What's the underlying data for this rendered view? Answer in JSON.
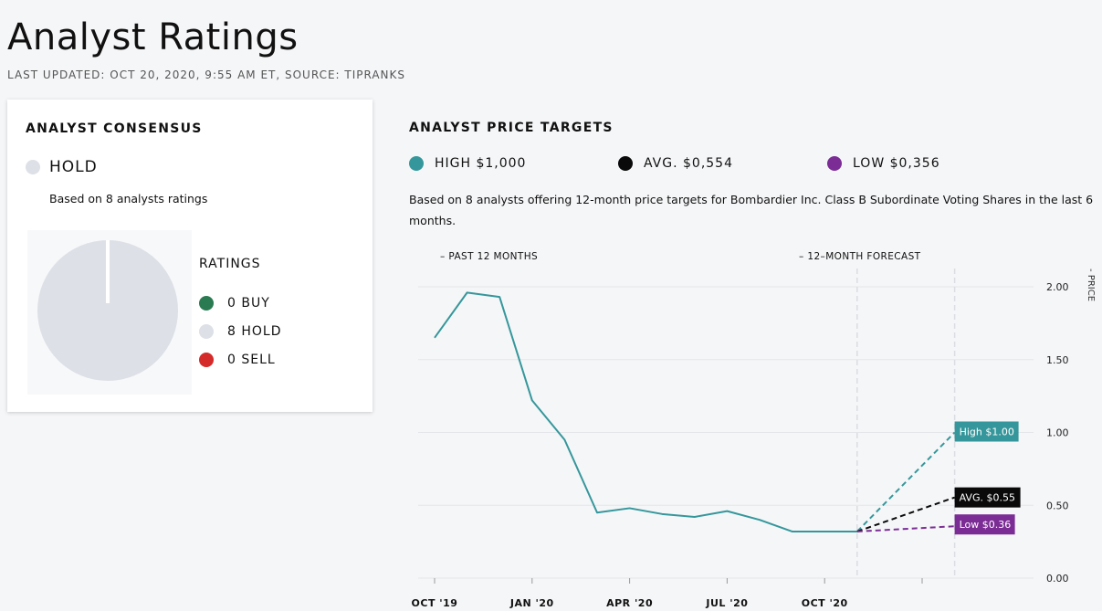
{
  "header": {
    "title": "Analyst Ratings",
    "last_updated": "LAST UPDATED: OCT 20, 2020, 9:55 AM ET, SOURCE: TIPRANKS"
  },
  "consensus": {
    "heading": "ANALYST CONSENSUS",
    "rating": "HOLD",
    "based_on": "Based on 8 analysts ratings",
    "ratings_title": "RATINGS",
    "ratings": [
      {
        "label": "0 BUY",
        "color": "#2a7a52"
      },
      {
        "label": "8 HOLD",
        "color": "#dde0e6"
      },
      {
        "label": "0 SELL",
        "color": "#d42a2a"
      }
    ],
    "pie_color": "#dde0e6"
  },
  "targets": {
    "heading": "ANALYST PRICE TARGETS",
    "legend": [
      {
        "label": "HIGH $1,000",
        "color": "#35979b"
      },
      {
        "label": "AVG. $0,554",
        "color": "#0a0a0a"
      },
      {
        "label": "LOW $0,356",
        "color": "#7b2d95"
      }
    ],
    "description": "Based on 8 analysts offering 12-month price targets for Bombardier Inc. Class B Subordinate Voting Shares in the last 6 months."
  },
  "chart_data": {
    "type": "line",
    "section_labels": {
      "past": "– PAST 12 MONTHS",
      "forecast": "– 12–MONTH FORECAST"
    },
    "ylabel": "- PRICE",
    "ylim": [
      0,
      2.0
    ],
    "yticks": [
      {
        "value": 0,
        "label": "0.00"
      },
      {
        "value": 0.5,
        "label": "0.50"
      },
      {
        "value": 1.0,
        "label": "1.00"
      },
      {
        "value": 1.5,
        "label": "1.50"
      },
      {
        "value": 2.0,
        "label": "2.00"
      }
    ],
    "xticks": [
      {
        "month": 0,
        "label": "OCT '19"
      },
      {
        "month": 3,
        "label": "JAN '20"
      },
      {
        "month": 6,
        "label": "APR '20"
      },
      {
        "month": 9,
        "label": "JUL '20"
      },
      {
        "month": 12,
        "label": "OCT '20"
      }
    ],
    "series": [
      {
        "color": "#35979b",
        "x": [
          0,
          1,
          2,
          3,
          4,
          5,
          6,
          7,
          8,
          9,
          10,
          11,
          12,
          13
        ],
        "y": [
          1.65,
          1.96,
          1.93,
          1.22,
          0.95,
          0.45,
          0.48,
          0.44,
          0.42,
          0.46,
          0.4,
          0.32,
          0.32,
          0.32
        ]
      }
    ],
    "forecast": {
      "start_month": 13,
      "end_month": 16,
      "start_value": 0.32,
      "targets": [
        {
          "label": "High $1.00",
          "value": 1.0,
          "color": "#35979b"
        },
        {
          "label": "AVG. $0.55",
          "value": 0.554,
          "color": "#0a0a0a"
        },
        {
          "label": "Low $0.36",
          "value": 0.356,
          "color": "#7b2d95"
        }
      ]
    }
  }
}
